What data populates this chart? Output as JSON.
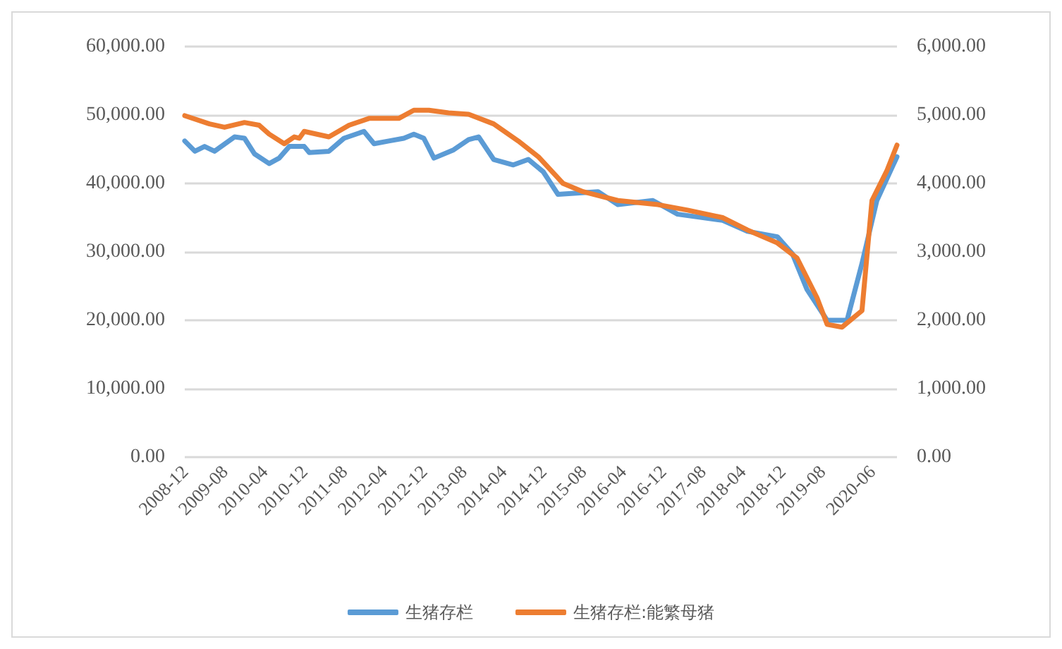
{
  "chart_data": {
    "type": "line",
    "xlim": [
      "2008-12",
      "2020-11"
    ],
    "xticks": [
      "2008-12",
      "2009-08",
      "2010-04",
      "2010-12",
      "2011-08",
      "2012-04",
      "2012-12",
      "2013-08",
      "2014-04",
      "2014-12",
      "2015-08",
      "2016-04",
      "2016-12",
      "2017-08",
      "2018-04",
      "2018-12",
      "2019-08",
      "2020-06"
    ],
    "ylim": [
      0,
      60000
    ],
    "yticks": [
      {
        "value": 0,
        "label": "0.00"
      },
      {
        "value": 10000,
        "label": "10,000.00"
      },
      {
        "value": 20000,
        "label": "20,000.00"
      },
      {
        "value": 30000,
        "label": "30,000.00"
      },
      {
        "value": 40000,
        "label": "40,000.00"
      },
      {
        "value": 50000,
        "label": "50,000.00"
      },
      {
        "value": 60000,
        "label": "60,000.00"
      }
    ],
    "y2lim": [
      0,
      6000
    ],
    "y2ticks": [
      {
        "value": 0,
        "label": "0.00"
      },
      {
        "value": 1000,
        "label": "1,000.00"
      },
      {
        "value": 2000,
        "label": "2,000.00"
      },
      {
        "value": 3000,
        "label": "3,000.00"
      },
      {
        "value": 4000,
        "label": "4,000.00"
      },
      {
        "value": 5000,
        "label": "5,000.00"
      },
      {
        "value": 6000,
        "label": "6,000.00"
      }
    ],
    "grid": "y",
    "legend": "bottom",
    "marker": "none",
    "line_style": "solid",
    "series": [
      {
        "name": "生猪存栏",
        "color": "#5b9bd5",
        "x": [
          "2008-12",
          "2009-02",
          "2009-04",
          "2009-06",
          "2009-10",
          "2009-12",
          "2010-02",
          "2010-05",
          "2010-07",
          "2010-09",
          "2010-12",
          "2011-01",
          "2011-05",
          "2011-08",
          "2011-12",
          "2012-02",
          "2012-05",
          "2012-08",
          "2012-10",
          "2012-12",
          "2013-02",
          "2013-06",
          "2013-09",
          "2013-11",
          "2014-02",
          "2014-06",
          "2014-09",
          "2014-12",
          "2015-03",
          "2015-11",
          "2016-03",
          "2016-10",
          "2017-03",
          "2017-12",
          "2018-05",
          "2018-11",
          "2019-02",
          "2019-05",
          "2019-09",
          "2020-01",
          "2020-04",
          "2020-07",
          "2020-11"
        ],
        "values": [
          46200,
          44700,
          45400,
          44700,
          46800,
          46600,
          44300,
          42900,
          43700,
          45400,
          45400,
          44500,
          44700,
          46600,
          47600,
          45800,
          46200,
          46600,
          47200,
          46600,
          43700,
          44900,
          46400,
          46800,
          43500,
          42700,
          43500,
          41700,
          38400,
          38800,
          36900,
          37500,
          35500,
          34600,
          33000,
          32200,
          29700,
          24500,
          20000,
          20000,
          28300,
          37500,
          43900
        ]
      },
      {
        "name": "生猪存栏:能繁母猪",
        "color": "#ed7d31",
        "axis": "y2",
        "x": [
          "2008-12",
          "2009-05",
          "2009-08",
          "2009-12",
          "2010-03",
          "2010-05",
          "2010-08",
          "2010-10",
          "2010-11",
          "2010-12",
          "2011-05",
          "2011-09",
          "2012-01",
          "2012-07",
          "2012-10",
          "2013-01",
          "2013-05",
          "2013-09",
          "2014-02",
          "2014-07",
          "2014-11",
          "2015-04",
          "2015-08",
          "2016-03",
          "2016-11",
          "2017-05",
          "2017-12",
          "2018-05",
          "2018-11",
          "2019-03",
          "2019-07",
          "2019-09",
          "2019-12",
          "2020-04",
          "2020-06",
          "2020-09",
          "2020-11"
        ],
        "values": [
          4990,
          4870,
          4820,
          4890,
          4850,
          4720,
          4580,
          4680,
          4660,
          4760,
          4680,
          4850,
          4950,
          4950,
          5070,
          5070,
          5030,
          5010,
          4870,
          4620,
          4390,
          4000,
          3880,
          3750,
          3690,
          3610,
          3500,
          3320,
          3130,
          2910,
          2330,
          1940,
          1900,
          2140,
          3750,
          4190,
          4560
        ]
      }
    ]
  }
}
